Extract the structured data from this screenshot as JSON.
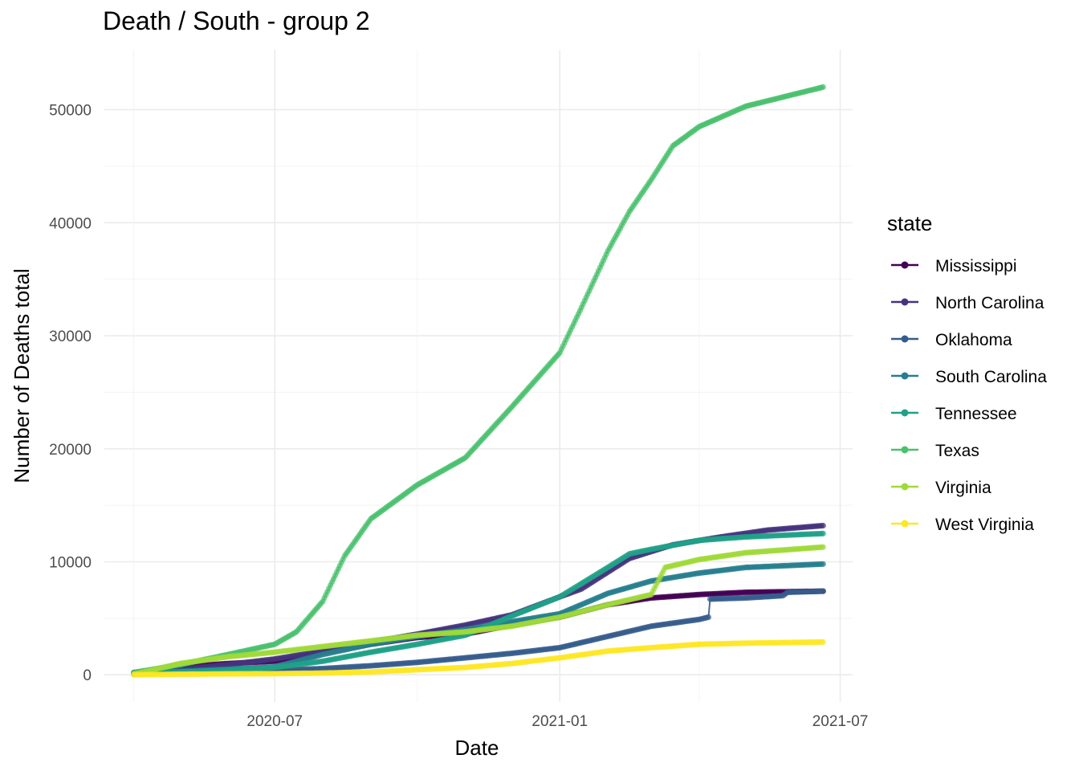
{
  "chart_data": {
    "type": "line",
    "title": "Death / South - group 2",
    "xlabel": "Date",
    "ylabel": "Number of Deaths total",
    "x_range": [
      "2020-03-13",
      "2021-07-09"
    ],
    "ylim": [
      -2400,
      55300
    ],
    "x_ticks": [
      "2020-07-01",
      "2021-01-01",
      "2021-07-01"
    ],
    "x_tick_labels": [
      "2020-07",
      "2021-01",
      "2021-07"
    ],
    "y_ticks": [
      0,
      10000,
      20000,
      30000,
      40000,
      50000
    ],
    "y_tick_labels": [
      "0",
      "10000",
      "20000",
      "30000",
      "40000",
      "50000"
    ],
    "grid": true,
    "legend": {
      "title": "state",
      "position": "right"
    },
    "series": [
      {
        "name": "Mississippi",
        "color": "#440154",
        "points": [
          [
            "2020-04-01",
            200
          ],
          [
            "2020-05-01",
            700
          ],
          [
            "2020-06-01",
            1000
          ],
          [
            "2020-07-01",
            1200
          ],
          [
            "2020-08-01",
            2000
          ],
          [
            "2020-09-01",
            2700
          ],
          [
            "2020-10-01",
            3300
          ],
          [
            "2020-11-01",
            3600
          ],
          [
            "2020-12-01",
            4400
          ],
          [
            "2021-01-01",
            5100
          ],
          [
            "2021-02-01",
            6200
          ],
          [
            "2021-03-01",
            6800
          ],
          [
            "2021-04-01",
            7100
          ],
          [
            "2021-05-01",
            7300
          ],
          [
            "2021-06-20",
            7400
          ]
        ]
      },
      {
        "name": "North Carolina",
        "color": "#46337e",
        "points": [
          [
            "2020-04-01",
            100
          ],
          [
            "2020-05-01",
            500
          ],
          [
            "2020-06-01",
            900
          ],
          [
            "2020-07-01",
            1400
          ],
          [
            "2020-08-01",
            2100
          ],
          [
            "2020-09-01",
            2900
          ],
          [
            "2020-10-01",
            3600
          ],
          [
            "2020-11-01",
            4400
          ],
          [
            "2020-12-01",
            5300
          ],
          [
            "2021-01-01",
            6900
          ],
          [
            "2021-01-15",
            7600
          ],
          [
            "2021-02-15",
            10300
          ],
          [
            "2021-03-15",
            11500
          ],
          [
            "2021-04-15",
            12200
          ],
          [
            "2021-05-15",
            12800
          ],
          [
            "2021-06-20",
            13200
          ]
        ]
      },
      {
        "name": "Oklahoma",
        "color": "#365c8d",
        "points": [
          [
            "2020-04-01",
            100
          ],
          [
            "2020-05-01",
            300
          ],
          [
            "2020-06-01",
            350
          ],
          [
            "2020-07-01",
            400
          ],
          [
            "2020-08-01",
            550
          ],
          [
            "2020-09-01",
            800
          ],
          [
            "2020-10-01",
            1100
          ],
          [
            "2020-11-01",
            1500
          ],
          [
            "2020-12-01",
            1900
          ],
          [
            "2021-01-01",
            2400
          ],
          [
            "2021-02-01",
            3400
          ],
          [
            "2021-03-01",
            4300
          ],
          [
            "2021-04-01",
            4900
          ],
          [
            "2021-04-07",
            5100
          ],
          [
            "2021-04-08",
            6700
          ],
          [
            "2021-05-01",
            6800
          ],
          [
            "2021-05-25",
            7000
          ],
          [
            "2021-05-28",
            7300
          ],
          [
            "2021-06-20",
            7400
          ]
        ]
      },
      {
        "name": "South Carolina",
        "color": "#277f8e",
        "points": [
          [
            "2020-04-01",
            100
          ],
          [
            "2020-05-01",
            300
          ],
          [
            "2020-06-01",
            500
          ],
          [
            "2020-07-01",
            700
          ],
          [
            "2020-08-01",
            1800
          ],
          [
            "2020-09-01",
            2700
          ],
          [
            "2020-10-01",
            3400
          ],
          [
            "2020-11-01",
            4000
          ],
          [
            "2020-12-01",
            4700
          ],
          [
            "2021-01-01",
            5400
          ],
          [
            "2021-02-01",
            7200
          ],
          [
            "2021-03-01",
            8300
          ],
          [
            "2021-04-01",
            9000
          ],
          [
            "2021-05-01",
            9500
          ],
          [
            "2021-06-20",
            9800
          ]
        ]
      },
      {
        "name": "Tennessee",
        "color": "#1fa187",
        "points": [
          [
            "2020-04-01",
            100
          ],
          [
            "2020-05-01",
            250
          ],
          [
            "2020-06-01",
            400
          ],
          [
            "2020-07-01",
            650
          ],
          [
            "2020-08-01",
            1200
          ],
          [
            "2020-09-01",
            2000
          ],
          [
            "2020-10-01",
            2700
          ],
          [
            "2020-11-01",
            3500
          ],
          [
            "2020-12-01",
            5200
          ],
          [
            "2021-01-01",
            6900
          ],
          [
            "2021-02-01",
            9500
          ],
          [
            "2021-02-15",
            10700
          ],
          [
            "2021-03-01",
            11100
          ],
          [
            "2021-04-01",
            11900
          ],
          [
            "2021-05-01",
            12200
          ],
          [
            "2021-06-20",
            12500
          ]
        ]
      },
      {
        "name": "Texas",
        "color": "#4ac16d",
        "points": [
          [
            "2020-04-01",
            200
          ],
          [
            "2020-05-01",
            900
          ],
          [
            "2020-06-01",
            1800
          ],
          [
            "2020-07-01",
            2700
          ],
          [
            "2020-07-15",
            3800
          ],
          [
            "2020-08-01",
            6500
          ],
          [
            "2020-08-15",
            10500
          ],
          [
            "2020-09-01",
            13800
          ],
          [
            "2020-10-01",
            16800
          ],
          [
            "2020-11-01",
            19200
          ],
          [
            "2020-12-01",
            23700
          ],
          [
            "2021-01-01",
            28500
          ],
          [
            "2021-01-15",
            32500
          ],
          [
            "2021-02-01",
            37500
          ],
          [
            "2021-02-15",
            41000
          ],
          [
            "2021-03-01",
            43800
          ],
          [
            "2021-03-15",
            46800
          ],
          [
            "2021-04-01",
            48500
          ],
          [
            "2021-05-01",
            50300
          ],
          [
            "2021-06-20",
            52000
          ]
        ]
      },
      {
        "name": "Virginia",
        "color": "#a0da39",
        "points": [
          [
            "2020-04-01",
            50
          ],
          [
            "2020-05-01",
            1000
          ],
          [
            "2020-06-01",
            1600
          ],
          [
            "2020-07-01",
            2000
          ],
          [
            "2020-08-01",
            2500
          ],
          [
            "2020-09-01",
            3000
          ],
          [
            "2020-10-01",
            3500
          ],
          [
            "2020-11-01",
            3800
          ],
          [
            "2020-12-01",
            4300
          ],
          [
            "2021-01-01",
            5100
          ],
          [
            "2021-02-01",
            6200
          ],
          [
            "2021-03-01",
            7100
          ],
          [
            "2021-03-10",
            9500
          ],
          [
            "2021-04-01",
            10200
          ],
          [
            "2021-05-01",
            10800
          ],
          [
            "2021-06-20",
            11300
          ]
        ]
      },
      {
        "name": "West Virginia",
        "color": "#fde725",
        "points": [
          [
            "2020-04-01",
            0
          ],
          [
            "2020-05-01",
            50
          ],
          [
            "2020-06-01",
            80
          ],
          [
            "2020-07-01",
            100
          ],
          [
            "2020-08-01",
            150
          ],
          [
            "2020-09-01",
            250
          ],
          [
            "2020-10-01",
            450
          ],
          [
            "2020-11-01",
            650
          ],
          [
            "2020-12-01",
            1000
          ],
          [
            "2021-01-01",
            1500
          ],
          [
            "2021-02-01",
            2100
          ],
          [
            "2021-03-01",
            2400
          ],
          [
            "2021-04-01",
            2700
          ],
          [
            "2021-05-01",
            2800
          ],
          [
            "2021-06-20",
            2900
          ]
        ]
      }
    ]
  }
}
